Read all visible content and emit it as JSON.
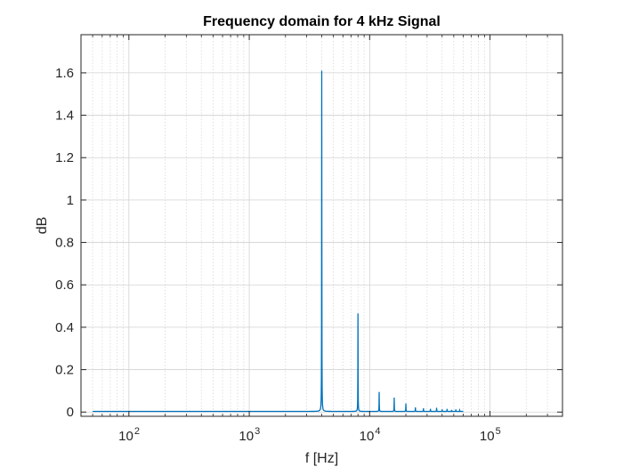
{
  "chart_data": {
    "type": "line",
    "title": "Frequency domain for 4 kHz Signal",
    "xlabel": "f [Hz]",
    "ylabel": "dB",
    "xscale": "log",
    "xlim": [
      40,
      400000
    ],
    "ylim": [
      -0.02,
      1.78
    ],
    "grid": true,
    "minor_grid": true,
    "xtick_base": "10",
    "xtick_exponents": [
      "2",
      "3",
      "4",
      "5"
    ],
    "yticks": [
      "0",
      "0.2",
      "0.4",
      "0.6",
      "0.8",
      "1",
      "1.2",
      "1.4",
      "1.6"
    ],
    "line_color": "#0072BD",
    "series": [
      {
        "baseline": 0.003,
        "x_range": [
          50,
          60000
        ],
        "peaks": [
          {
            "x": 4000,
            "y": 1.61
          },
          {
            "x": 8000,
            "y": 0.465
          },
          {
            "x": 12000,
            "y": 0.095
          },
          {
            "x": 16000,
            "y": 0.068
          },
          {
            "x": 20000,
            "y": 0.04
          },
          {
            "x": 24000,
            "y": 0.022
          },
          {
            "x": 28000,
            "y": 0.018
          },
          {
            "x": 32000,
            "y": 0.015
          },
          {
            "x": 36000,
            "y": 0.02
          },
          {
            "x": 40000,
            "y": 0.012
          },
          {
            "x": 44000,
            "y": 0.015
          },
          {
            "x": 48000,
            "y": 0.01
          },
          {
            "x": 52000,
            "y": 0.012
          },
          {
            "x": 56000,
            "y": 0.008
          }
        ]
      }
    ]
  }
}
